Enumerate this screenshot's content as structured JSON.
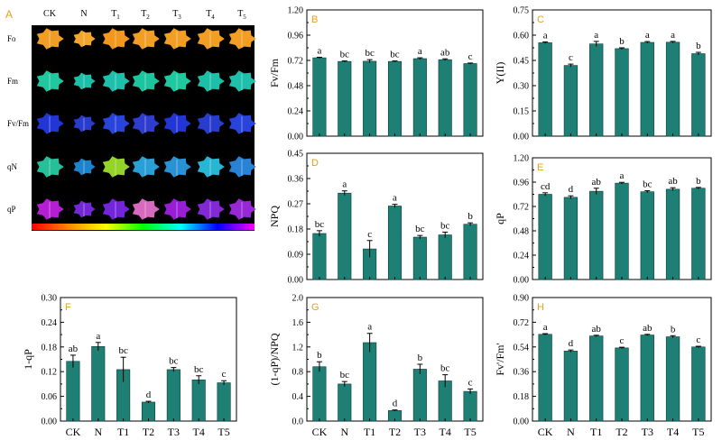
{
  "colors": {
    "bar_fill": "#1e7f74",
    "bar_stroke": "#0b3d37",
    "panel_letter": "#e8a020",
    "axis": "#000000",
    "image_background": "#000000",
    "image_labels": "#ffffff"
  },
  "image_panel": {
    "letter": "A",
    "columns": [
      {
        "name": "CK",
        "sub": ""
      },
      {
        "name": "N",
        "sub": ""
      },
      {
        "name": "T",
        "sub": "1"
      },
      {
        "name": "T",
        "sub": "2"
      },
      {
        "name": "T",
        "sub": "3"
      },
      {
        "name": "T",
        "sub": "4"
      },
      {
        "name": "T",
        "sub": "5"
      }
    ],
    "rows": [
      "Fo",
      "Fm",
      "Fv/Fm",
      "qN",
      "qP"
    ],
    "leaf_colors": [
      [
        "#ffa726",
        "#ffb02e",
        "#ffa020",
        "#ffa726",
        "#ffa726",
        "#ffa726",
        "#ffa726"
      ],
      [
        "#22d3a8",
        "#1ec9b0",
        "#20c9b4",
        "#1ed0a6",
        "#22d3a8",
        "#1ec9b0",
        "#20c9b4"
      ],
      [
        "#2438e0",
        "#2a3fd8",
        "#2a48e6",
        "#3040d8",
        "#2438e0",
        "#2a3fd8",
        "#2a48e6"
      ],
      [
        "#27c9a0",
        "#1f8ad8",
        "#9adf2a",
        "#2aa8e0",
        "#2a9ae0",
        "#2ac0e0",
        "#2a8ae0"
      ],
      [
        "#c020e0",
        "#7a2ae0",
        "#7a26e6",
        "#e070c8",
        "#a020e0",
        "#8a2ae0",
        "#a02ae0"
      ]
    ],
    "colorbar": [
      "#ff0000",
      "#ff8800",
      "#ffff00",
      "#00ff00",
      "#00ffff",
      "#0000ff",
      "#ff00ff"
    ]
  },
  "chart_data": [
    {
      "id": "B",
      "type": "bar",
      "ylabel": "Fv/Fm",
      "ylim": [
        0,
        1.2
      ],
      "yticks": [
        "0.00",
        "0.24",
        "0.48",
        "0.72",
        "0.96",
        "1.20"
      ],
      "categories": [
        "CK",
        "N",
        "T1",
        "T2",
        "T3",
        "T4",
        "T5"
      ],
      "show_xticks": false,
      "values": [
        0.745,
        0.71,
        0.712,
        0.71,
        0.737,
        0.727,
        0.69
      ],
      "errors": [
        0.005,
        0.005,
        0.015,
        0.005,
        0.008,
        0.008,
        0.005
      ],
      "letters": [
        "a",
        "bc",
        "bc",
        "bc",
        "a",
        "ab",
        "c"
      ]
    },
    {
      "id": "C",
      "type": "bar",
      "ylabel": "Y(II)",
      "ylim": [
        0,
        0.75
      ],
      "yticks": [
        "0.00",
        "0.15",
        "0.30",
        "0.45",
        "0.60",
        "0.75"
      ],
      "categories": [
        "CK",
        "N",
        "T1",
        "T2",
        "T3",
        "T4",
        "T5"
      ],
      "show_xticks": false,
      "values": [
        0.555,
        0.42,
        0.548,
        0.52,
        0.557,
        0.558,
        0.49
      ],
      "errors": [
        0.005,
        0.008,
        0.015,
        0.005,
        0.005,
        0.005,
        0.008
      ],
      "letters": [
        "a",
        "c",
        "a",
        "b",
        "a",
        "a",
        "b"
      ]
    },
    {
      "id": "D",
      "type": "bar",
      "ylabel": "NPQ",
      "ylim": [
        0,
        0.45
      ],
      "yticks": [
        "0.00",
        "0.09",
        "0.18",
        "0.27",
        "0.36",
        "0.45"
      ],
      "categories": [
        "CK",
        "N",
        "T1",
        "T2",
        "T3",
        "T4",
        "T5"
      ],
      "show_xticks": false,
      "values": [
        0.164,
        0.308,
        0.109,
        0.262,
        0.151,
        0.159,
        0.197
      ],
      "errors": [
        0.01,
        0.008,
        0.03,
        0.006,
        0.006,
        0.01,
        0.005
      ],
      "letters": [
        "bc",
        "a",
        "c",
        "a",
        "bc",
        "bc",
        "b"
      ]
    },
    {
      "id": "E",
      "type": "bar",
      "ylabel": "qP",
      "ylim": [
        0,
        1.2
      ],
      "yticks": [
        "0.00",
        "0.24",
        "0.48",
        "0.72",
        "0.96",
        "1.20"
      ],
      "categories": [
        "CK",
        "N",
        "T1",
        "T2",
        "T3",
        "T4",
        "T5"
      ],
      "show_xticks": false,
      "values": [
        0.84,
        0.81,
        0.87,
        0.95,
        0.865,
        0.89,
        0.9
      ],
      "errors": [
        0.015,
        0.015,
        0.03,
        0.008,
        0.01,
        0.015,
        0.008
      ],
      "letters": [
        "cd",
        "d",
        "ab",
        "a",
        "bc",
        "ab",
        "b"
      ]
    },
    {
      "id": "F",
      "type": "bar",
      "ylabel": "1-qP",
      "ylim": [
        0,
        0.3
      ],
      "yticks": [
        "0.00",
        "0.06",
        "0.12",
        "0.18",
        "0.24",
        "0.30"
      ],
      "categories": [
        "CK",
        "N",
        "T1",
        "T2",
        "T3",
        "T4",
        "T5"
      ],
      "show_xticks": true,
      "values": [
        0.145,
        0.181,
        0.125,
        0.046,
        0.125,
        0.1,
        0.093
      ],
      "errors": [
        0.015,
        0.01,
        0.03,
        0.002,
        0.005,
        0.01,
        0.005
      ],
      "letters": [
        "ab",
        "a",
        "bc",
        "d",
        "bc",
        "bc",
        "c"
      ]
    },
    {
      "id": "G",
      "type": "bar",
      "ylabel": "(1-qP)/NPQ",
      "ylim": [
        0,
        2.0
      ],
      "yticks": [
        "0.0",
        "0.4",
        "0.8",
        "1.2",
        "1.6",
        "2.0"
      ],
      "categories": [
        "CK",
        "N",
        "T1",
        "T2",
        "T3",
        "T4",
        "T5"
      ],
      "show_xticks": true,
      "values": [
        0.88,
        0.6,
        1.27,
        0.17,
        0.84,
        0.65,
        0.48
      ],
      "errors": [
        0.08,
        0.04,
        0.15,
        0.01,
        0.08,
        0.1,
        0.04
      ],
      "letters": [
        "b",
        "bc",
        "a",
        "d",
        "b",
        "bc",
        "c"
      ]
    },
    {
      "id": "H",
      "type": "bar",
      "ylabel": "Fv'/Fm'",
      "ylim": [
        0,
        0.9
      ],
      "yticks": [
        "0.00",
        "0.18",
        "0.36",
        "0.54",
        "0.72",
        "0.90"
      ],
      "categories": [
        "CK",
        "N",
        "T1",
        "T2",
        "T3",
        "T4",
        "T5"
      ],
      "show_xticks": true,
      "values": [
        0.632,
        0.51,
        0.62,
        0.533,
        0.627,
        0.614,
        0.54
      ],
      "errors": [
        0.005,
        0.008,
        0.005,
        0.005,
        0.005,
        0.008,
        0.005
      ],
      "letters": [
        "a",
        "d",
        "ab",
        "c",
        "ab",
        "b",
        "c"
      ]
    }
  ]
}
